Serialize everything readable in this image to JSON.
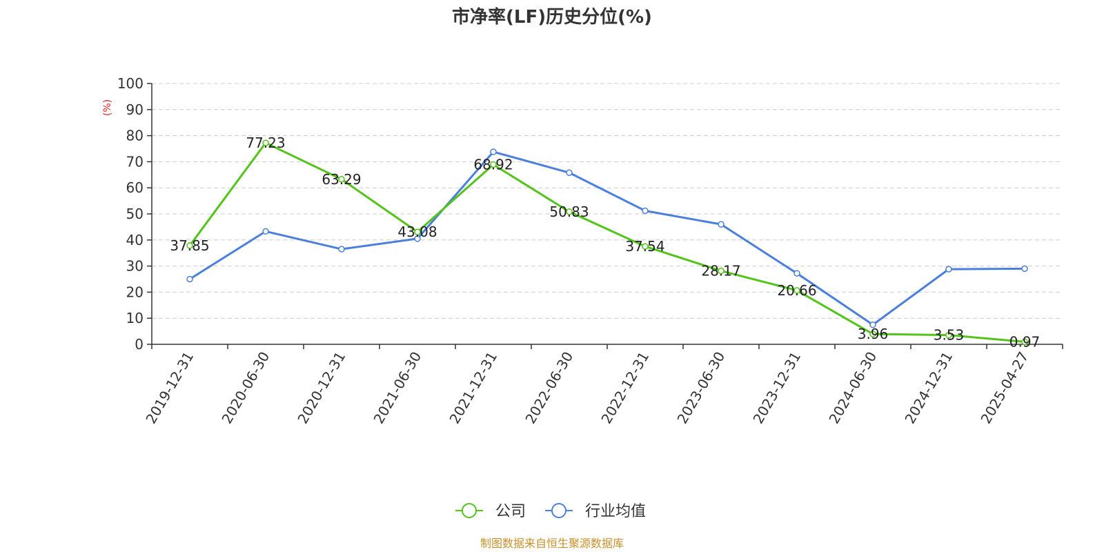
{
  "chart_data": {
    "type": "line",
    "title": "市净率(LF)历史分位(%)",
    "ylabel": "(%)",
    "ylim": [
      0,
      100
    ],
    "yticks": [
      "0",
      "10",
      "20",
      "30",
      "40",
      "50",
      "60",
      "70",
      "80",
      "90",
      "100"
    ],
    "grid": true,
    "legend_position": "bottom-center",
    "categories": [
      "2019-12-31",
      "2020-06-30",
      "2020-12-31",
      "2021-06-30",
      "2021-12-31",
      "2022-06-30",
      "2022-12-31",
      "2023-06-30",
      "2023-12-31",
      "2024-06-30",
      "2024-12-31",
      "2025-04-27"
    ],
    "series": [
      {
        "name": "公司",
        "color": "#52c41a",
        "values": [
          37.85,
          77.23,
          63.29,
          43.08,
          68.92,
          50.83,
          37.54,
          28.17,
          20.66,
          3.96,
          3.53,
          0.97
        ],
        "labels": [
          "37.85",
          "77.23",
          "63.29",
          "43.08",
          "68.92",
          "50.83",
          "37.54",
          "28.17",
          "20.66",
          "3.96",
          "3.53",
          "0.97"
        ]
      },
      {
        "name": "行业均值",
        "color": "#4a7fdc",
        "values": [
          25,
          43.3,
          36.5,
          40.5,
          73.8,
          65.8,
          51.2,
          46,
          27.2,
          7.5,
          28.8,
          29
        ]
      }
    ],
    "source": "制图数据来自恒生聚源数据库",
    "source_color": "#c8902a",
    "unit_color": "#e02020"
  }
}
